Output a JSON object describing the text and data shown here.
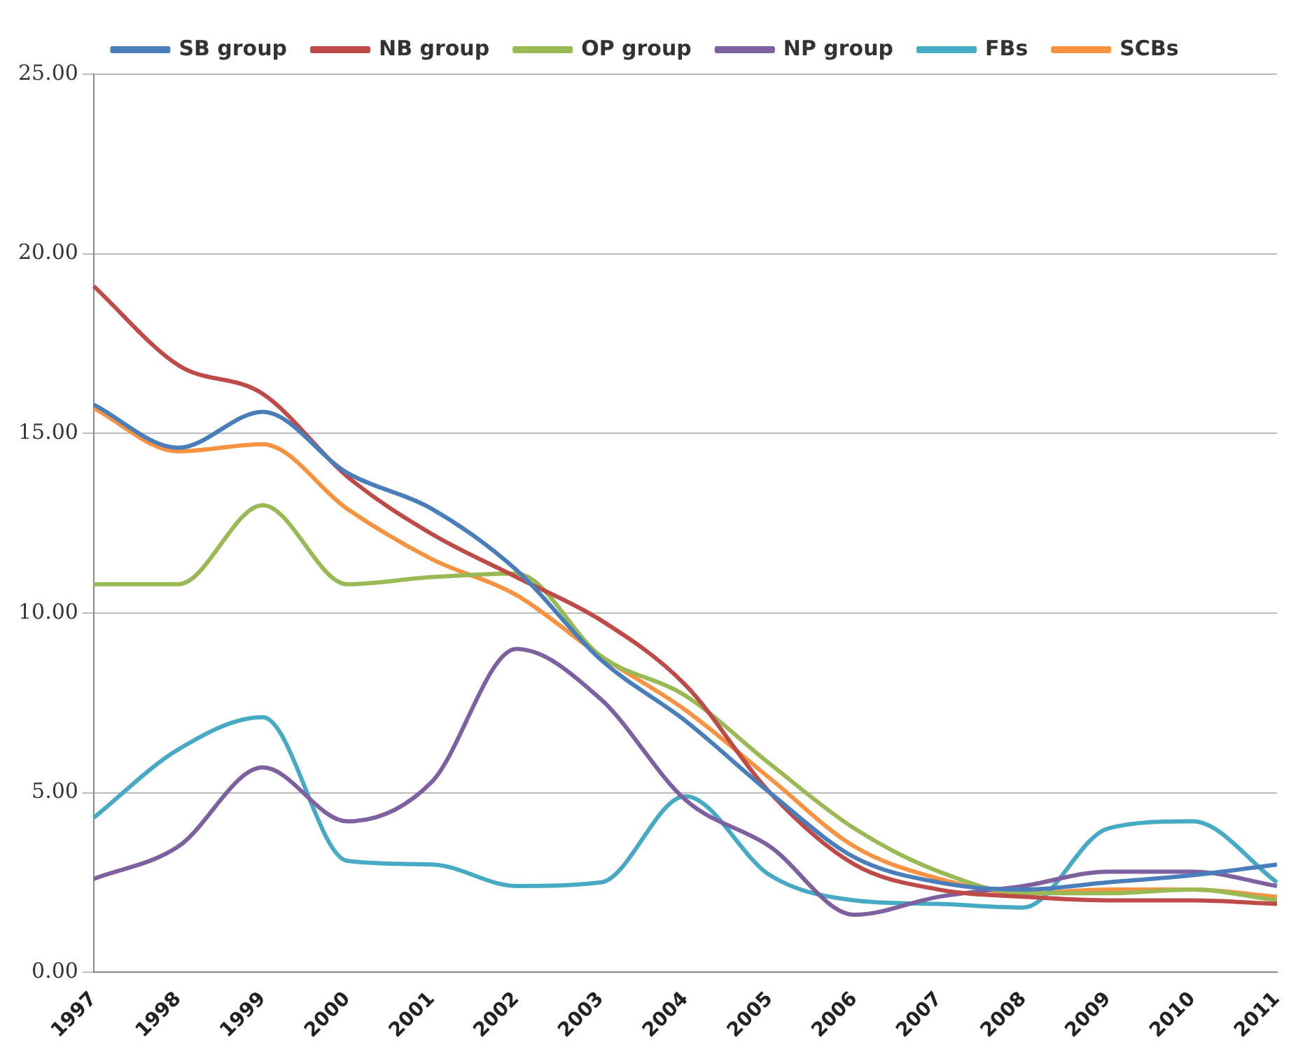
{
  "chart_data": {
    "type": "line",
    "categories": [
      "1997",
      "1998",
      "1999",
      "2000",
      "2001",
      "2002",
      "2003",
      "2004",
      "2005",
      "2006",
      "2007",
      "2008",
      "2009",
      "2010",
      "2011"
    ],
    "series": [
      {
        "name": "SB group",
        "color": "#4a7ebb",
        "values": [
          15.8,
          14.6,
          15.6,
          13.9,
          12.9,
          11.2,
          8.7,
          7.0,
          5.0,
          3.2,
          2.5,
          2.3,
          2.5,
          2.7,
          3.0
        ]
      },
      {
        "name": "NB group",
        "color": "#be4b48",
        "values": [
          19.1,
          16.9,
          16.1,
          13.8,
          12.2,
          11.0,
          9.8,
          8.0,
          5.0,
          3.0,
          2.3,
          2.1,
          2.0,
          2.0,
          1.9
        ]
      },
      {
        "name": "OP group",
        "color": "#98b954",
        "values": [
          10.8,
          10.8,
          13.0,
          10.8,
          11.0,
          11.1,
          8.8,
          7.7,
          5.8,
          4.0,
          2.8,
          2.2,
          2.2,
          2.3,
          2.0
        ]
      },
      {
        "name": "NP group",
        "color": "#7d60a0",
        "values": [
          2.6,
          3.5,
          5.7,
          4.2,
          5.3,
          9.0,
          7.6,
          4.8,
          3.5,
          1.6,
          2.1,
          2.4,
          2.8,
          2.8,
          2.4
        ]
      },
      {
        "name": "FBs",
        "color": "#46aac5",
        "values": [
          4.3,
          6.2,
          7.1,
          3.1,
          3.0,
          2.4,
          2.5,
          4.9,
          2.7,
          2.0,
          1.9,
          1.8,
          4.0,
          4.2,
          2.5
        ]
      },
      {
        "name": "SCBs",
        "color": "#f69240",
        "values": [
          15.7,
          14.5,
          14.7,
          12.9,
          11.5,
          10.5,
          8.8,
          7.3,
          5.4,
          3.5,
          2.6,
          2.2,
          2.3,
          2.3,
          2.1
        ]
      }
    ],
    "ylim": [
      0,
      25
    ],
    "yticks": [
      {
        "value": 0,
        "label": "0.00"
      },
      {
        "value": 5,
        "label": "5.00"
      },
      {
        "value": 10,
        "label": "10.00"
      },
      {
        "value": 15,
        "label": "15.00"
      },
      {
        "value": 20,
        "label": "20.00"
      },
      {
        "value": 25,
        "label": "25.00"
      }
    ],
    "grid": "y",
    "legend": "top",
    "marker": "none",
    "line_style": "solid"
  }
}
